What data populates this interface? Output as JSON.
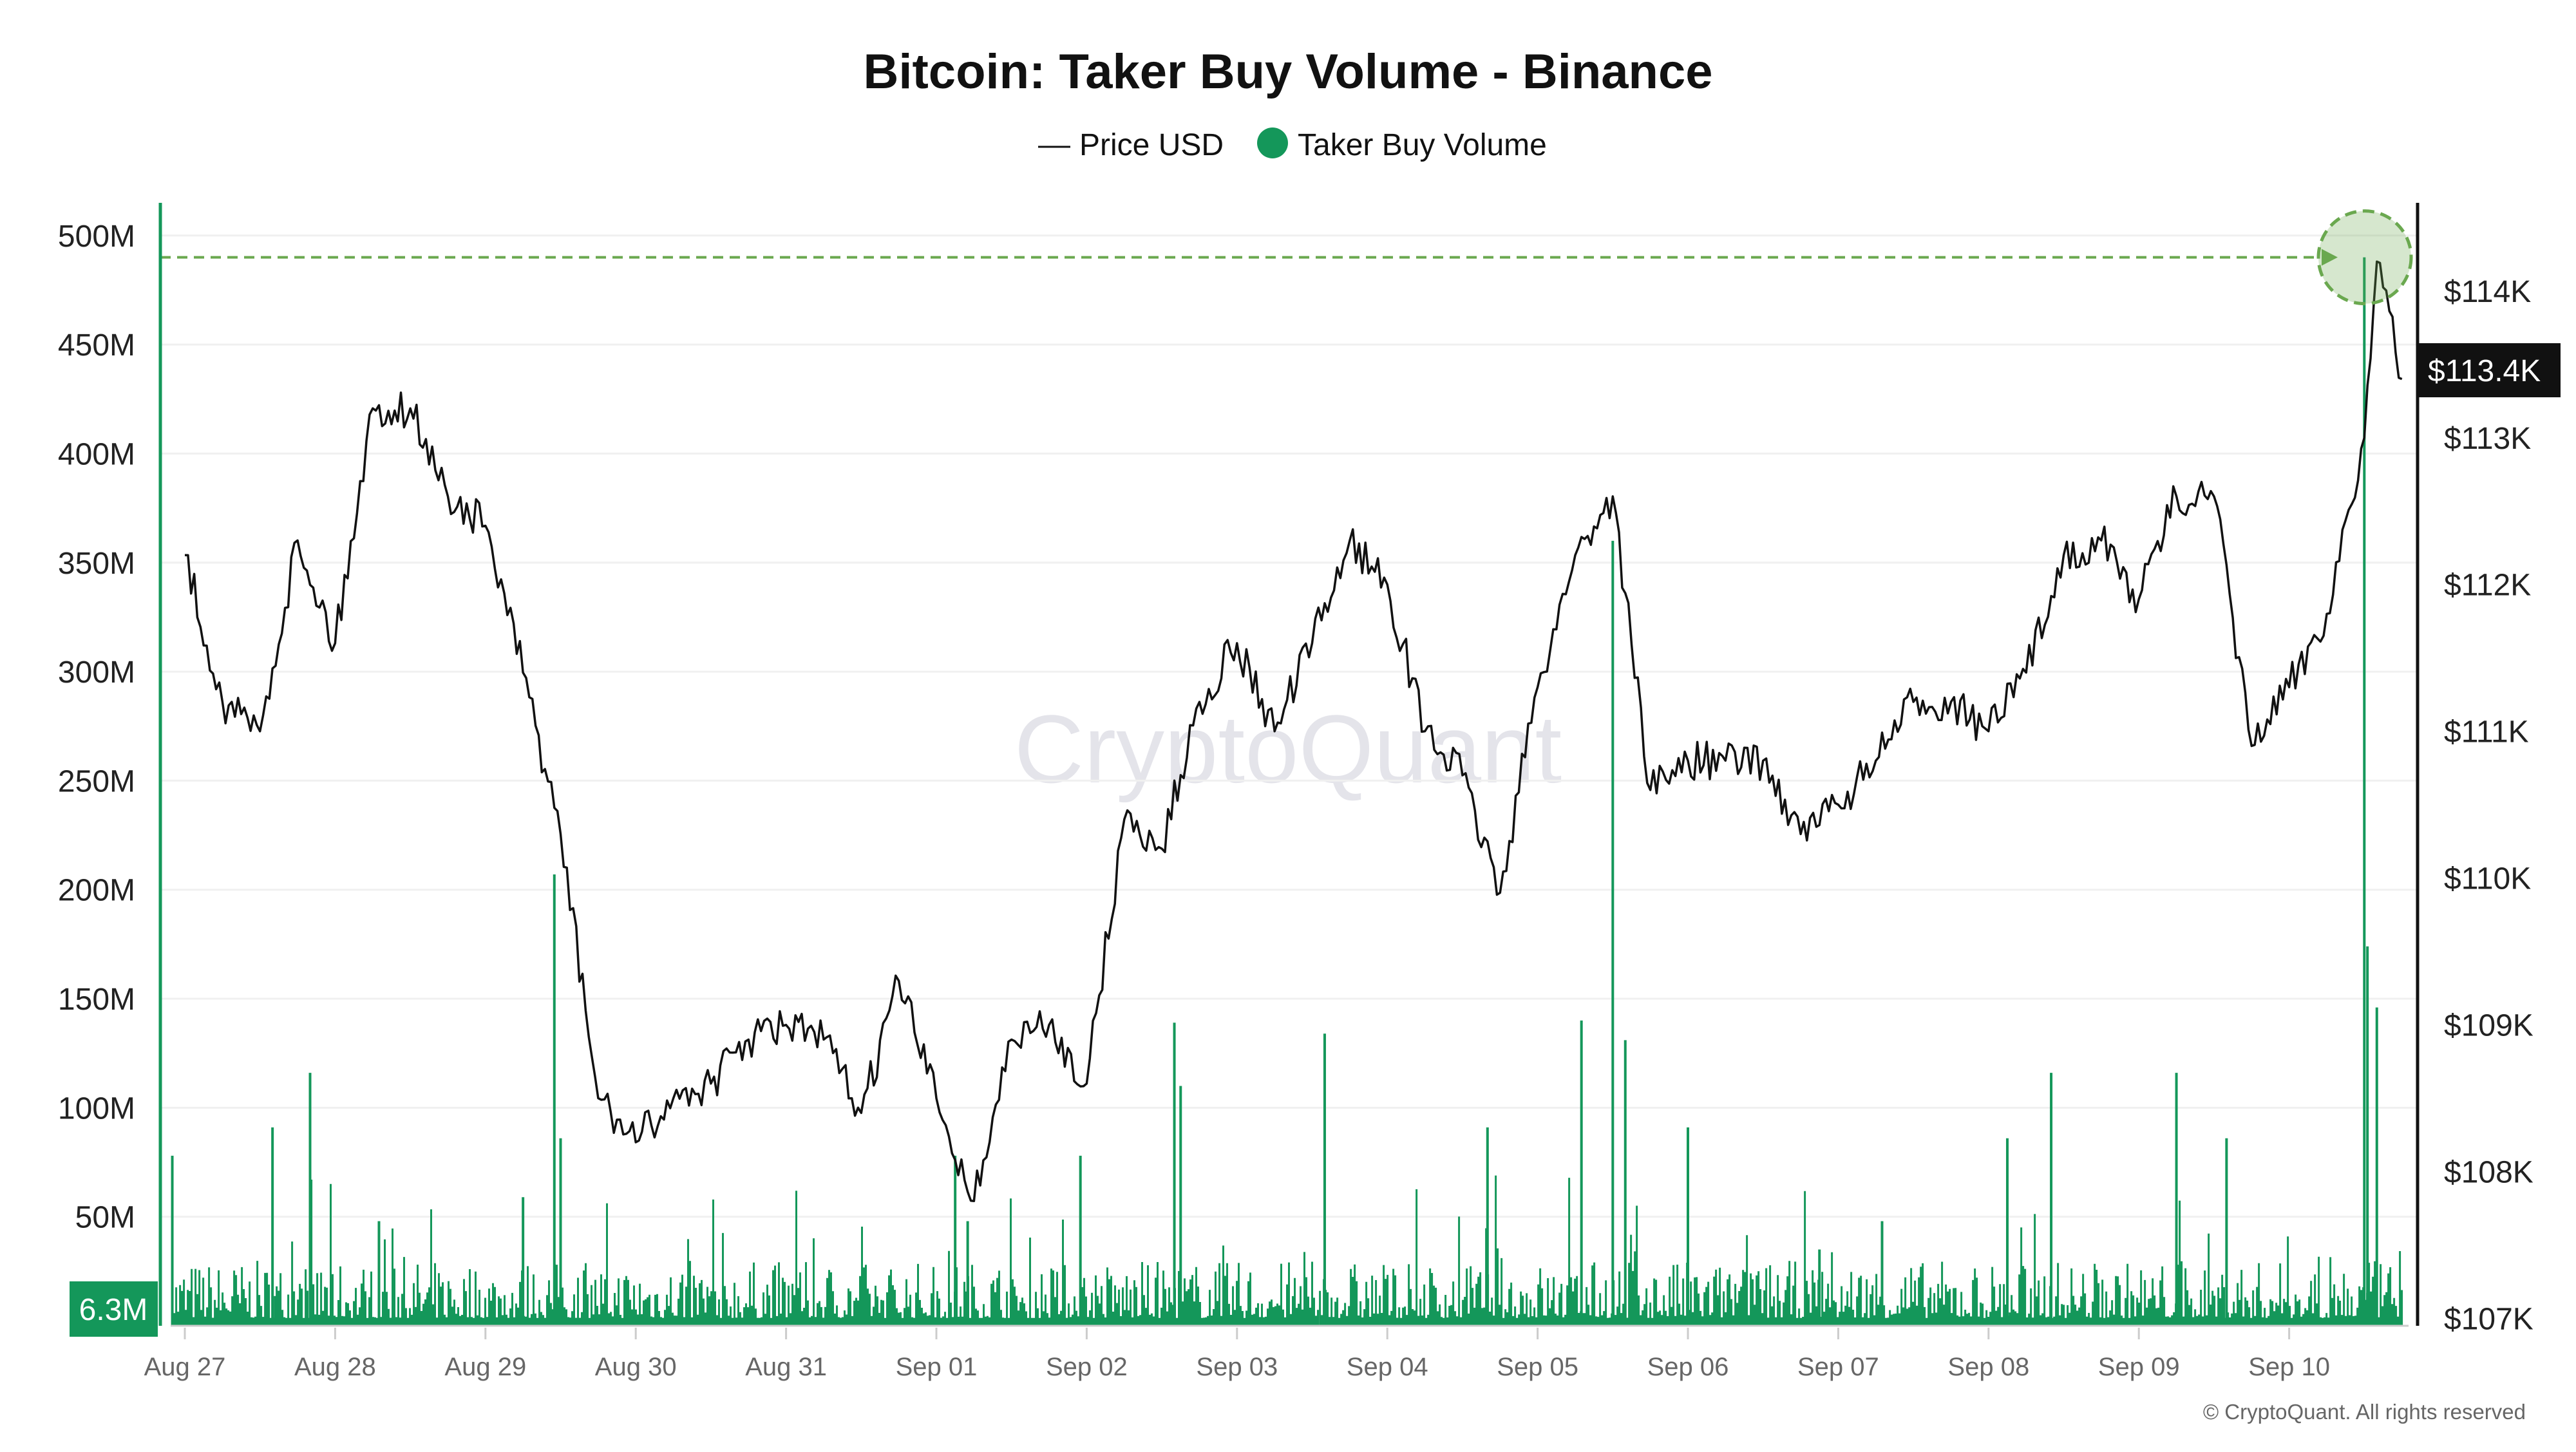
{
  "chart_data": {
    "type": "line+bar",
    "title": "Bitcoin: Taker Buy Volume - Binance",
    "legend": {
      "placement": "top-center",
      "items": [
        {
          "label": "Price USD",
          "marker": "line",
          "color": "#111111"
        },
        {
          "label": "Taker Buy Volume",
          "marker": "dot",
          "color": "#14975a"
        }
      ]
    },
    "left_axis": {
      "ticks": [
        "50M",
        "100M",
        "150M",
        "200M",
        "250M",
        "300M",
        "350M",
        "400M",
        "450M",
        "500M"
      ],
      "tick_values": [
        50,
        100,
        150,
        200,
        250,
        300,
        350,
        400,
        450,
        500
      ],
      "unit": "M",
      "range": [
        0,
        515
      ],
      "current_label": "6.3M"
    },
    "right_axis": {
      "ticks": [
        "$107K",
        "$108K",
        "$109K",
        "$110K",
        "$111K",
        "$112K",
        "$113K",
        "$114K"
      ],
      "tick_values": [
        107,
        108,
        109,
        110,
        111,
        112,
        113,
        114
      ],
      "unit": "K USD",
      "range": [
        106.95,
        114.6
      ],
      "current_label": "$113.4K"
    },
    "x_axis": {
      "ticks": [
        "Aug 27",
        "Aug 28",
        "Aug 29",
        "Aug 30",
        "Aug 31",
        "Sep 01",
        "Sep 02",
        "Sep 03",
        "Sep 04",
        "Sep 05",
        "Sep 06",
        "Sep 07",
        "Sep 08",
        "Sep 09",
        "Sep 10"
      ]
    },
    "grid": "horizontal",
    "price_series": {
      "name": "Price USD",
      "time": [
        "08-27 00:00",
        "08-27 06:00",
        "08-27 12:00",
        "08-27 18:00",
        "08-28 00:00",
        "08-28 06:00",
        "08-28 12:00",
        "08-28 18:00",
        "08-29 00:00",
        "08-29 06:00",
        "08-29 12:00",
        "08-29 18:00",
        "08-30 00:00",
        "08-30 06:00",
        "08-30 12:00",
        "08-30 18:00",
        "08-31 00:00",
        "08-31 06:00",
        "08-31 12:00",
        "08-31 18:00",
        "09-01 00:00",
        "09-01 06:00",
        "09-01 12:00",
        "09-01 18:00",
        "09-02 00:00",
        "09-02 06:00",
        "09-02 12:00",
        "09-02 18:00",
        "09-03 00:00",
        "09-03 06:00",
        "09-03 12:00",
        "09-03 18:00",
        "09-04 00:00",
        "09-04 06:00",
        "09-04 12:00",
        "09-04 18:00",
        "09-05 00:00",
        "09-05 06:00",
        "09-05 12:00",
        "09-05 18:00",
        "09-06 00:00",
        "09-06 06:00",
        "09-06 12:00",
        "09-06 18:00",
        "09-07 00:00",
        "09-07 06:00",
        "09-07 12:00",
        "09-07 18:00",
        "09-08 00:00",
        "09-08 06:00",
        "09-08 12:00",
        "09-08 18:00",
        "09-09 00:00",
        "09-09 06:00",
        "09-09 12:00",
        "09-09 18:00",
        "09-10 00:00",
        "09-10 06:00",
        "09-10 12:00",
        "09-10 14:00",
        "09-10 18:00"
      ],
      "values": [
        112.2,
        111.2,
        111.0,
        112.3,
        111.6,
        113.2,
        113.2,
        112.6,
        112.4,
        111.4,
        110.3,
        108.5,
        108.2,
        108.5,
        108.6,
        108.9,
        109.0,
        108.9,
        108.4,
        109.3,
        108.5,
        107.8,
        108.9,
        109.0,
        108.6,
        110.4,
        110.2,
        111.2,
        111.6,
        111.0,
        111.6,
        112.3,
        112.0,
        111.0,
        110.7,
        109.9,
        111.3,
        112.2,
        112.6,
        110.6,
        110.8,
        110.8,
        110.8,
        110.3,
        110.5,
        110.8,
        111.2,
        111.2,
        111.0,
        111.4,
        112.2,
        112.3,
        111.9,
        112.6,
        112.6,
        110.9,
        111.3,
        111.8,
        113.0,
        114.2,
        113.4
      ]
    },
    "volume_series": {
      "name": "Taker Buy Volume",
      "unit": "M",
      "spikes": {
        "time": [
          "08-26 22:00",
          "08-27 14:00",
          "08-27 20:00",
          "08-28 07:00",
          "08-29 06:00",
          "08-29 11:00",
          "08-29 12:00",
          "09-01 03:00",
          "09-01 05:00",
          "09-01 23:00",
          "09-02 14:00",
          "09-02 15:00",
          "09-03 14:00",
          "09-04 16:00",
          "09-05 07:00",
          "09-05 12:00",
          "09-05 14:00",
          "09-06 00:00",
          "09-06 21:00",
          "09-07 07:00",
          "09-08 03:00",
          "09-08 10:00",
          "09-09 06:00",
          "09-09 14:00",
          "09-10 12:00",
          "09-10 12:30",
          "09-10 14:00"
        ],
        "values": [
          78,
          91,
          116,
          48,
          59,
          207,
          86,
          78,
          48,
          78,
          139,
          110,
          134,
          91,
          140,
          360,
          131,
          91,
          35,
          48,
          86,
          116,
          116,
          86,
          490,
          174,
          146
        ]
      },
      "typical_level": 12
    },
    "annotation": {
      "type": "dashed-threshold",
      "value": 490,
      "marker": "circle",
      "color": "#6aa84f"
    },
    "watermark": "CryptoQuant",
    "copyright": "© CryptoQuant. All rights reserved"
  }
}
